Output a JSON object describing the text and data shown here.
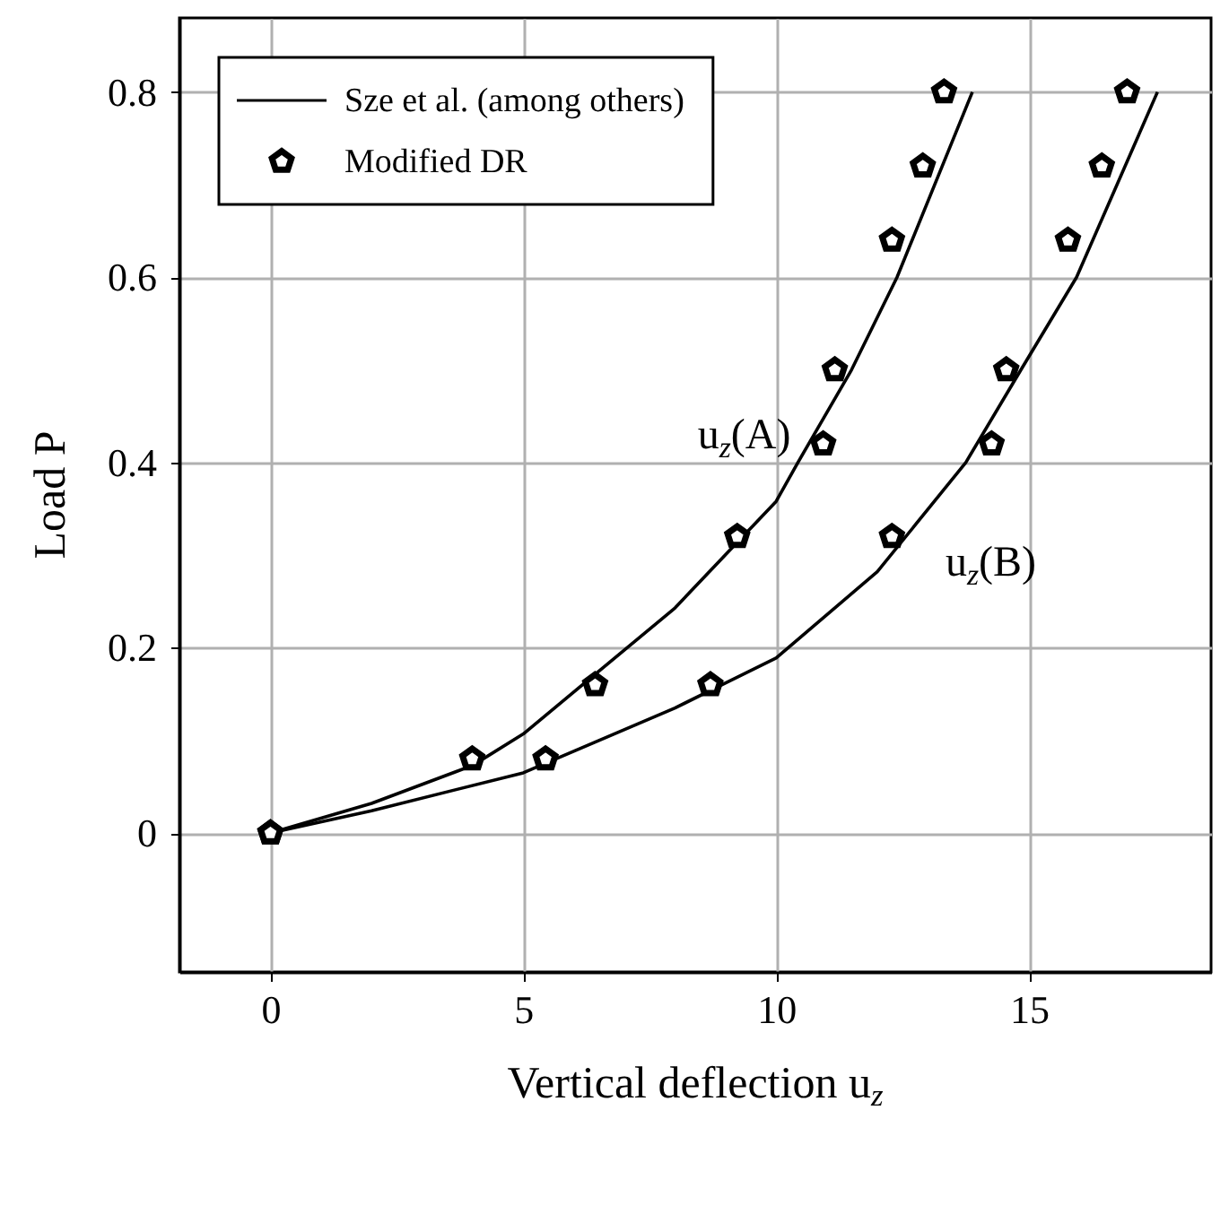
{
  "chart_data": {
    "type": "line",
    "xlabel": "Vertical deflection u$_{z}$",
    "ylabel": "Load P",
    "xlim": [
      -1.8,
      18.6
    ],
    "ylim": [
      -0.15,
      0.88
    ],
    "xticks": [
      0,
      5,
      10,
      15
    ],
    "yticks": [
      0,
      0.2,
      0.4,
      0.6,
      0.8
    ],
    "grid": true,
    "legend": "top left",
    "line_style": "solid",
    "series": [
      {
        "name": "Sze et al. (among others)",
        "color": "#000000",
        "x": [
          0,
          2,
          4,
          5,
          8,
          10,
          10.43,
          11.49,
          12.39,
          13.88
        ],
        "values": [
          0,
          0.032,
          0.073,
          0.107,
          0.243,
          0.358,
          0.4,
          0.5,
          0.6,
          0.8
        ]
      },
      {
        "color": "#000000",
        "x": [
          0,
          2,
          5,
          8,
          10,
          12,
          13.75,
          14.84,
          15.94,
          17.54
        ],
        "values": [
          0,
          0.024,
          0.065,
          0.135,
          0.189,
          0.282,
          0.4,
          0.5,
          0.6,
          0.8
        ]
      },
      {
        "name": "Modified DR",
        "type": "scatter",
        "color": "#000000",
        "x": [
          0,
          3.99,
          6.42,
          9.23,
          10.93,
          11.16,
          12.29,
          12.9,
          13.32
        ],
        "values": [
          0,
          0.08,
          0.16,
          0.32,
          0.42,
          0.5,
          0.64,
          0.72,
          0.8
        ]
      },
      {
        "type": "scatter",
        "color": "#000000",
        "x": [
          0,
          5.44,
          8.7,
          12.29,
          14.26,
          14.55,
          15.77,
          16.44,
          16.94
        ],
        "values": [
          0,
          0.08,
          0.16,
          0.32,
          0.42,
          0.5,
          0.64,
          0.72,
          0.8
        ]
      }
    ],
    "annotations": [
      {
        "text": "u$_{z}$(A)",
        "x": 10.43,
        "y": 0.4
      },
      {
        "text": "u$_{z}$(B)",
        "x": 12,
        "y": 0.282
      }
    ]
  }
}
